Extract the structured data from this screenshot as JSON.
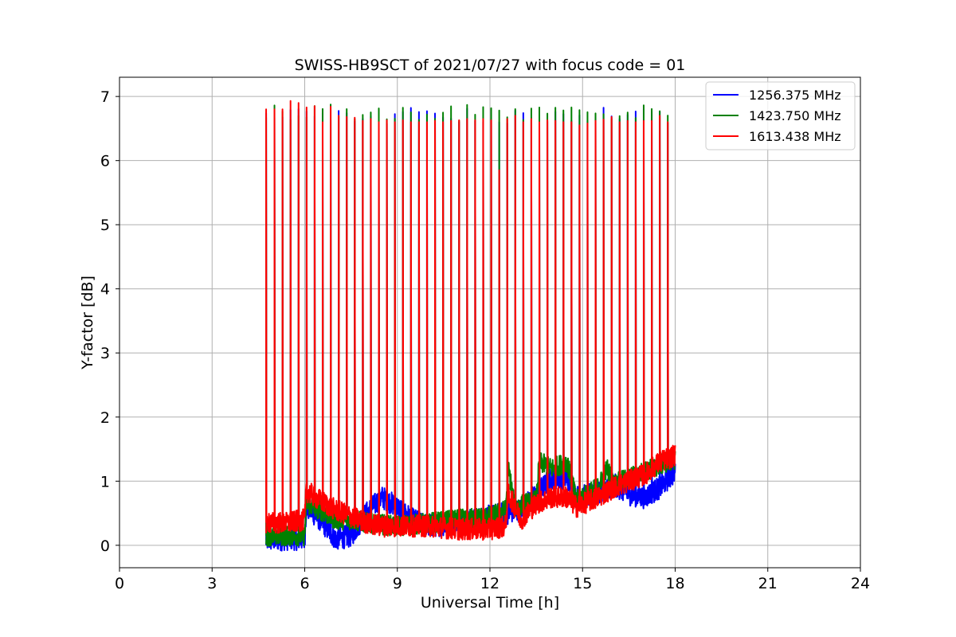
{
  "chart_data": {
    "type": "line",
    "title": "SWISS-HB9SCT of 2021/07/27 with focus code = 01",
    "xlabel": "Universal Time [h]",
    "ylabel": "Y-factor [dB]",
    "xlim": [
      0,
      24
    ],
    "ylim": [
      -0.35,
      7.3
    ],
    "xticks": [
      0,
      3,
      6,
      9,
      12,
      15,
      18,
      21,
      24
    ],
    "yticks": [
      0,
      1,
      2,
      3,
      4,
      5,
      6,
      7
    ],
    "grid": true,
    "legend_position": "top-right",
    "series": [
      {
        "name": "1256.375 MHz",
        "color": "#0000ff",
        "baseline": [
          [
            4.75,
            0.08
          ],
          [
            5.5,
            0.1
          ],
          [
            6.0,
            0.1
          ],
          [
            6.05,
            0.6
          ],
          [
            6.5,
            0.4
          ],
          [
            7.0,
            0.1
          ],
          [
            7.5,
            0.15
          ],
          [
            8.0,
            0.5
          ],
          [
            8.5,
            0.75
          ],
          [
            9.0,
            0.6
          ],
          [
            9.5,
            0.4
          ],
          [
            10.0,
            0.3
          ],
          [
            11.0,
            0.35
          ],
          [
            11.5,
            0.4
          ],
          [
            12.0,
            0.45
          ],
          [
            12.5,
            0.5
          ],
          [
            13.0,
            0.55
          ],
          [
            13.5,
            0.8
          ],
          [
            14.0,
            1.05
          ],
          [
            14.5,
            1.05
          ],
          [
            14.8,
            0.75
          ],
          [
            15.5,
            0.8
          ],
          [
            16.0,
            0.95
          ],
          [
            16.5,
            0.8
          ],
          [
            17.0,
            0.75
          ],
          [
            17.5,
            0.9
          ],
          [
            18.0,
            1.15
          ]
        ],
        "noise": 0.18,
        "spike_peak": 6.7
      },
      {
        "name": "1423.750 MHz",
        "color": "#008000",
        "baseline": [
          [
            4.75,
            0.15
          ],
          [
            5.5,
            0.15
          ],
          [
            6.0,
            0.15
          ],
          [
            6.05,
            0.65
          ],
          [
            6.5,
            0.55
          ],
          [
            7.0,
            0.4
          ],
          [
            7.5,
            0.4
          ],
          [
            8.0,
            0.35
          ],
          [
            9.0,
            0.3
          ],
          [
            10.0,
            0.35
          ],
          [
            11.0,
            0.4
          ],
          [
            12.0,
            0.45
          ],
          [
            12.5,
            0.55
          ],
          [
            12.6,
            1.2
          ],
          [
            12.8,
            0.6
          ],
          [
            13.5,
            0.7
          ],
          [
            13.6,
            1.3
          ],
          [
            14.0,
            1.2
          ],
          [
            14.5,
            1.3
          ],
          [
            14.8,
            0.7
          ],
          [
            15.5,
            0.9
          ],
          [
            15.8,
            1.2
          ],
          [
            16.0,
            0.95
          ],
          [
            17.0,
            1.15
          ],
          [
            17.5,
            1.25
          ],
          [
            18.0,
            1.35
          ]
        ],
        "noise": 0.16,
        "spike_peak": 6.75
      },
      {
        "name": "1613.438 MHz",
        "color": "#ff0000",
        "baseline": [
          [
            4.75,
            0.35
          ],
          [
            5.5,
            0.35
          ],
          [
            6.0,
            0.4
          ],
          [
            6.05,
            0.85
          ],
          [
            6.5,
            0.7
          ],
          [
            7.0,
            0.55
          ],
          [
            7.5,
            0.45
          ],
          [
            8.0,
            0.35
          ],
          [
            8.5,
            0.3
          ],
          [
            9.0,
            0.3
          ],
          [
            10.0,
            0.3
          ],
          [
            11.0,
            0.25
          ],
          [
            12.0,
            0.25
          ],
          [
            12.5,
            0.3
          ],
          [
            12.6,
            0.8
          ],
          [
            13.0,
            0.4
          ],
          [
            13.5,
            0.65
          ],
          [
            14.0,
            0.75
          ],
          [
            14.5,
            0.75
          ],
          [
            14.8,
            0.6
          ],
          [
            15.5,
            0.75
          ],
          [
            16.0,
            0.9
          ],
          [
            17.0,
            1.1
          ],
          [
            17.5,
            1.3
          ],
          [
            18.0,
            1.4
          ]
        ],
        "noise": 0.17,
        "spike_peak": 6.7
      }
    ],
    "spike_times": [
      4.75,
      5.02,
      5.28,
      5.54,
      5.8,
      6.06,
      6.32,
      6.58,
      6.84,
      7.1,
      7.36,
      7.62,
      7.88,
      8.14,
      8.4,
      8.66,
      8.92,
      9.18,
      9.44,
      9.7,
      9.96,
      10.22,
      10.48,
      10.74,
      11.0,
      11.26,
      11.52,
      11.78,
      12.04,
      12.3,
      12.56,
      12.82,
      13.08,
      13.34,
      13.6,
      13.86,
      14.12,
      14.38,
      14.64,
      14.9,
      15.16,
      15.42,
      15.68,
      15.94,
      16.2,
      16.46,
      16.72,
      16.98,
      17.24,
      17.5,
      17.76
    ],
    "red_spike_peaks": [
      6.8,
      6.8,
      6.8,
      6.93,
      6.9,
      6.83,
      6.85,
      6.6,
      6.84,
      6.7,
      6.68,
      6.67,
      6.62,
      6.65,
      6.6,
      6.63,
      6.6,
      6.63,
      6.6,
      6.6,
      6.6,
      6.62,
      6.6,
      6.62,
      6.63,
      6.65,
      6.63,
      6.65,
      6.63,
      5.85,
      6.65,
      6.7,
      6.6,
      6.65,
      6.6,
      6.63,
      6.62,
      6.6,
      6.6,
      6.55,
      6.58,
      6.62,
      6.64,
      6.68,
      6.6,
      6.62,
      6.6,
      6.62,
      6.62,
      6.7,
      6.6
    ]
  }
}
